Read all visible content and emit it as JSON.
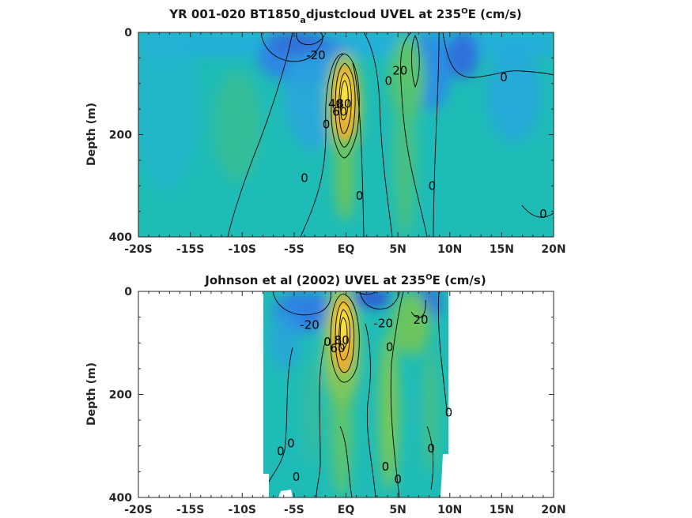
{
  "colors": {
    "deep_blue": "#2f62d8",
    "blue": "#2a8fe3",
    "light_blue": "#26aede",
    "teal": "#1fbcb7",
    "green": "#6cc55f",
    "yellow_green": "#b8c83d",
    "orange": "#f0a23a",
    "yellow": "#f7e53a",
    "contour": "#000000"
  },
  "chart_data": [
    {
      "type": "heatmap",
      "title": "YR 001-020 BT1850_adjustcloud UVEL at 235ºE (cm/s)",
      "title_parts": {
        "main": "YR 001-020 BT1850",
        "subscript": "a",
        "after_subscript": "djustcloud UVEL at 235",
        "superscript": "O",
        "tail": "E (cm/s)"
      },
      "xlabel": "",
      "ylabel": "Depth (m)",
      "x_ticks": [
        "-20S",
        "-15S",
        "-10S",
        "-5S",
        "EQ",
        "5N",
        "10N",
        "15N",
        "20N"
      ],
      "x_tick_values": [
        -20,
        -15,
        -10,
        -5,
        0,
        5,
        10,
        15,
        20
      ],
      "y_ticks": [
        "0",
        "200",
        "400"
      ],
      "y_tick_values": [
        0,
        200,
        400
      ],
      "xlim": [
        -20,
        20
      ],
      "ylim": [
        400,
        0
      ],
      "y_reversed": true,
      "data_extent_x": [
        -20,
        20
      ],
      "contour_labels": [
        {
          "text": "-20",
          "lat": -2.9,
          "depth": 45
        },
        {
          "text": "20",
          "lat": 5.2,
          "depth": 75
        },
        {
          "text": "0",
          "lat": 4.1,
          "depth": 95
        },
        {
          "text": "0",
          "lat": 15.2,
          "depth": 88
        },
        {
          "text": "40",
          "lat": -1.0,
          "depth": 140
        },
        {
          "text": "60",
          "lat": -0.6,
          "depth": 155
        },
        {
          "text": "80",
          "lat": -0.2,
          "depth": 140
        },
        {
          "text": "0",
          "lat": -1.9,
          "depth": 180
        },
        {
          "text": "0",
          "lat": -4.0,
          "depth": 285
        },
        {
          "text": "0",
          "lat": 1.3,
          "depth": 320
        },
        {
          "text": "0",
          "lat": 8.3,
          "depth": 300
        },
        {
          "text": "0",
          "lat": 19.0,
          "depth": 355
        }
      ],
      "features": {
        "undercurrent_core": {
          "lat": 0,
          "depth": 120,
          "max_value": 80
        },
        "westward_flow": {
          "lat": -3,
          "depth": 40,
          "value": -20
        },
        "eastward_flow": {
          "lat": 5.5,
          "depth": 70,
          "value": 20
        }
      }
    },
    {
      "type": "heatmap",
      "title": "Johnson et al (2002) UVEL at 235ºE (cm/s)",
      "title_parts": {
        "main": "Johnson et al (2002) UVEL at 235",
        "superscript": "O",
        "tail": "E (cm/s)"
      },
      "xlabel": "",
      "ylabel": "Depth (m)",
      "x_ticks": [
        "-20S",
        "-15S",
        "-10S",
        "-5S",
        "EQ",
        "5N",
        "10N",
        "15N",
        "20N"
      ],
      "x_tick_values": [
        -20,
        -15,
        -10,
        -5,
        0,
        5,
        10,
        15,
        20
      ],
      "y_ticks": [
        "0",
        "200",
        "400"
      ],
      "y_tick_values": [
        0,
        200,
        400
      ],
      "xlim": [
        -20,
        20
      ],
      "ylim": [
        400,
        0
      ],
      "y_reversed": true,
      "data_extent_x": [
        -8,
        10
      ],
      "contour_labels": [
        {
          "text": "-20",
          "lat": -3.5,
          "depth": 65
        },
        {
          "text": "-20",
          "lat": 3.6,
          "depth": 62
        },
        {
          "text": "20",
          "lat": 7.2,
          "depth": 55
        },
        {
          "text": "0",
          "lat": -1.8,
          "depth": 98
        },
        {
          "text": "0",
          "lat": 4.2,
          "depth": 108
        },
        {
          "text": "60",
          "lat": -0.8,
          "depth": 110
        },
        {
          "text": "80",
          "lat": -0.4,
          "depth": 95
        },
        {
          "text": "0",
          "lat": -6.3,
          "depth": 310
        },
        {
          "text": "0",
          "lat": -5.3,
          "depth": 295
        },
        {
          "text": "0",
          "lat": 3.8,
          "depth": 340
        },
        {
          "text": "0",
          "lat": 8.2,
          "depth": 305
        },
        {
          "text": "0",
          "lat": 9.9,
          "depth": 235
        },
        {
          "text": "0",
          "lat": -4.8,
          "depth": 360
        },
        {
          "text": "0",
          "lat": 5.0,
          "depth": 365
        }
      ],
      "features": {
        "undercurrent_core": {
          "lat": -0.2,
          "depth": 90,
          "max_value": 80
        },
        "westward_flow": {
          "lat": -3.5,
          "depth": 40,
          "value": -20
        },
        "eastward_flow": {
          "lat": 6.5,
          "depth": 60,
          "value": 20
        }
      }
    }
  ]
}
